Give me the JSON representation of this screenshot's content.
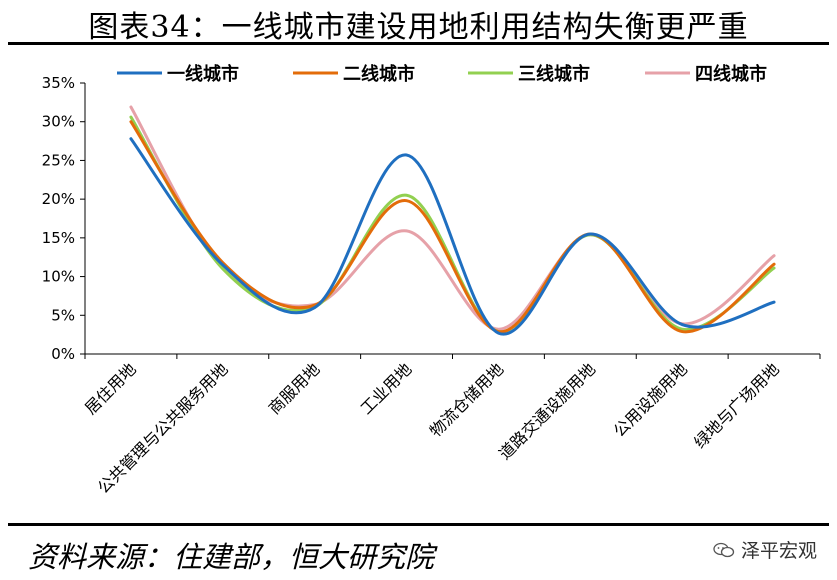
{
  "header": {
    "title": "图表34：一线城市建设用地利用结构失衡更严重"
  },
  "footer": {
    "source": "资料来源：住建部，恒大研究院",
    "watermark": "泽平宏观"
  },
  "chart_data": {
    "type": "line",
    "ylim": [
      0,
      35
    ],
    "yticks": [
      0,
      5,
      10,
      15,
      20,
      25,
      30,
      35
    ],
    "ytick_labels": [
      "0%",
      "5%",
      "10%",
      "15%",
      "20%",
      "25%",
      "30%",
      "35%"
    ],
    "categories": [
      "居住用地",
      "公共管理与公共服务用地",
      "商服用地",
      "工业用地",
      "物流仓储用地",
      "道路交通设施用地",
      "公用设施用地",
      "绿地与广场用地"
    ],
    "legend_position": "top",
    "series": [
      {
        "name": "一线城市",
        "color": "#1f6fc0",
        "values": [
          27.8,
          11.5,
          6.0,
          25.7,
          2.7,
          15.5,
          3.8,
          6.7
        ]
      },
      {
        "name": "二线城市",
        "color": "#e36c0a",
        "values": [
          30.0,
          11.8,
          6.3,
          19.8,
          2.9,
          15.5,
          2.9,
          11.6
        ]
      },
      {
        "name": "三线城市",
        "color": "#92d050",
        "values": [
          30.6,
          11.0,
          6.1,
          20.5,
          2.9,
          15.4,
          3.2,
          11.1
        ]
      },
      {
        "name": "四线城市",
        "color": "#e6a1a8",
        "values": [
          31.9,
          11.2,
          6.4,
          15.9,
          3.2,
          15.4,
          3.9,
          12.7
        ]
      }
    ]
  }
}
